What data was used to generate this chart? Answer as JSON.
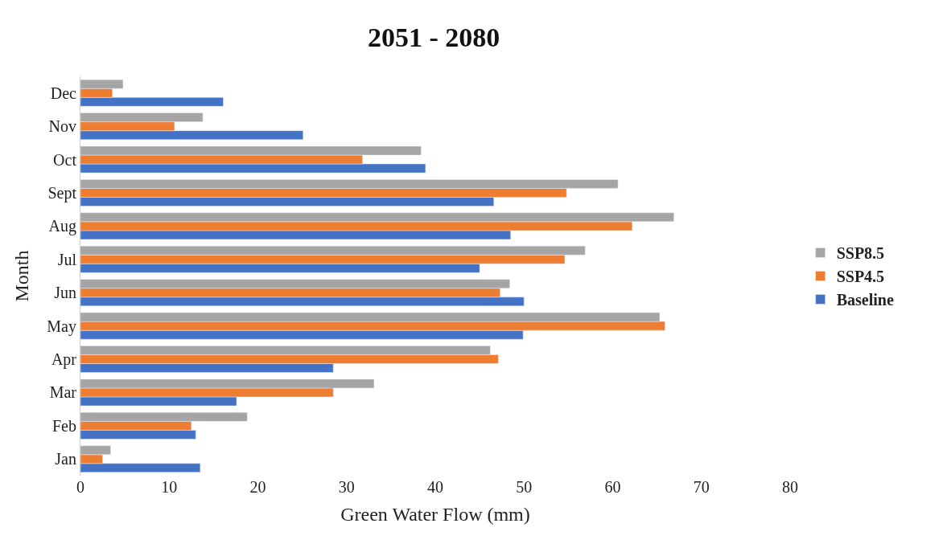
{
  "chart_data": {
    "type": "bar",
    "orientation": "horizontal",
    "title": "2051 - 2080",
    "xlabel": "Green Water Flow (mm)",
    "ylabel": "Month",
    "categories": [
      "Dec",
      "Nov",
      "Oct",
      "Sept",
      "Aug",
      "Jul",
      "Jun",
      "May",
      "Apr",
      "Mar",
      "Feb",
      "Jan"
    ],
    "series": [
      {
        "name": "Baseline",
        "color": "#4472c4",
        "values": [
          16.1,
          25.1,
          38.9,
          46.6,
          48.5,
          45.0,
          50.0,
          49.9,
          28.5,
          17.6,
          13.0,
          13.5
        ]
      },
      {
        "name": "SSP4.5",
        "color": "#ed7d31",
        "values": [
          3.6,
          10.6,
          31.8,
          54.8,
          62.2,
          54.6,
          47.3,
          65.9,
          47.1,
          28.5,
          12.5,
          2.5
        ]
      },
      {
        "name": "SSP8.5",
        "color": "#a5a5a5",
        "values": [
          4.8,
          13.8,
          38.4,
          60.6,
          66.9,
          56.9,
          48.4,
          65.3,
          46.2,
          33.1,
          18.8,
          3.4
        ]
      }
    ],
    "xlim": [
      0,
      80
    ],
    "xticks": [
      0,
      10,
      20,
      30,
      40,
      50,
      60,
      70,
      80
    ],
    "legend": "right"
  }
}
